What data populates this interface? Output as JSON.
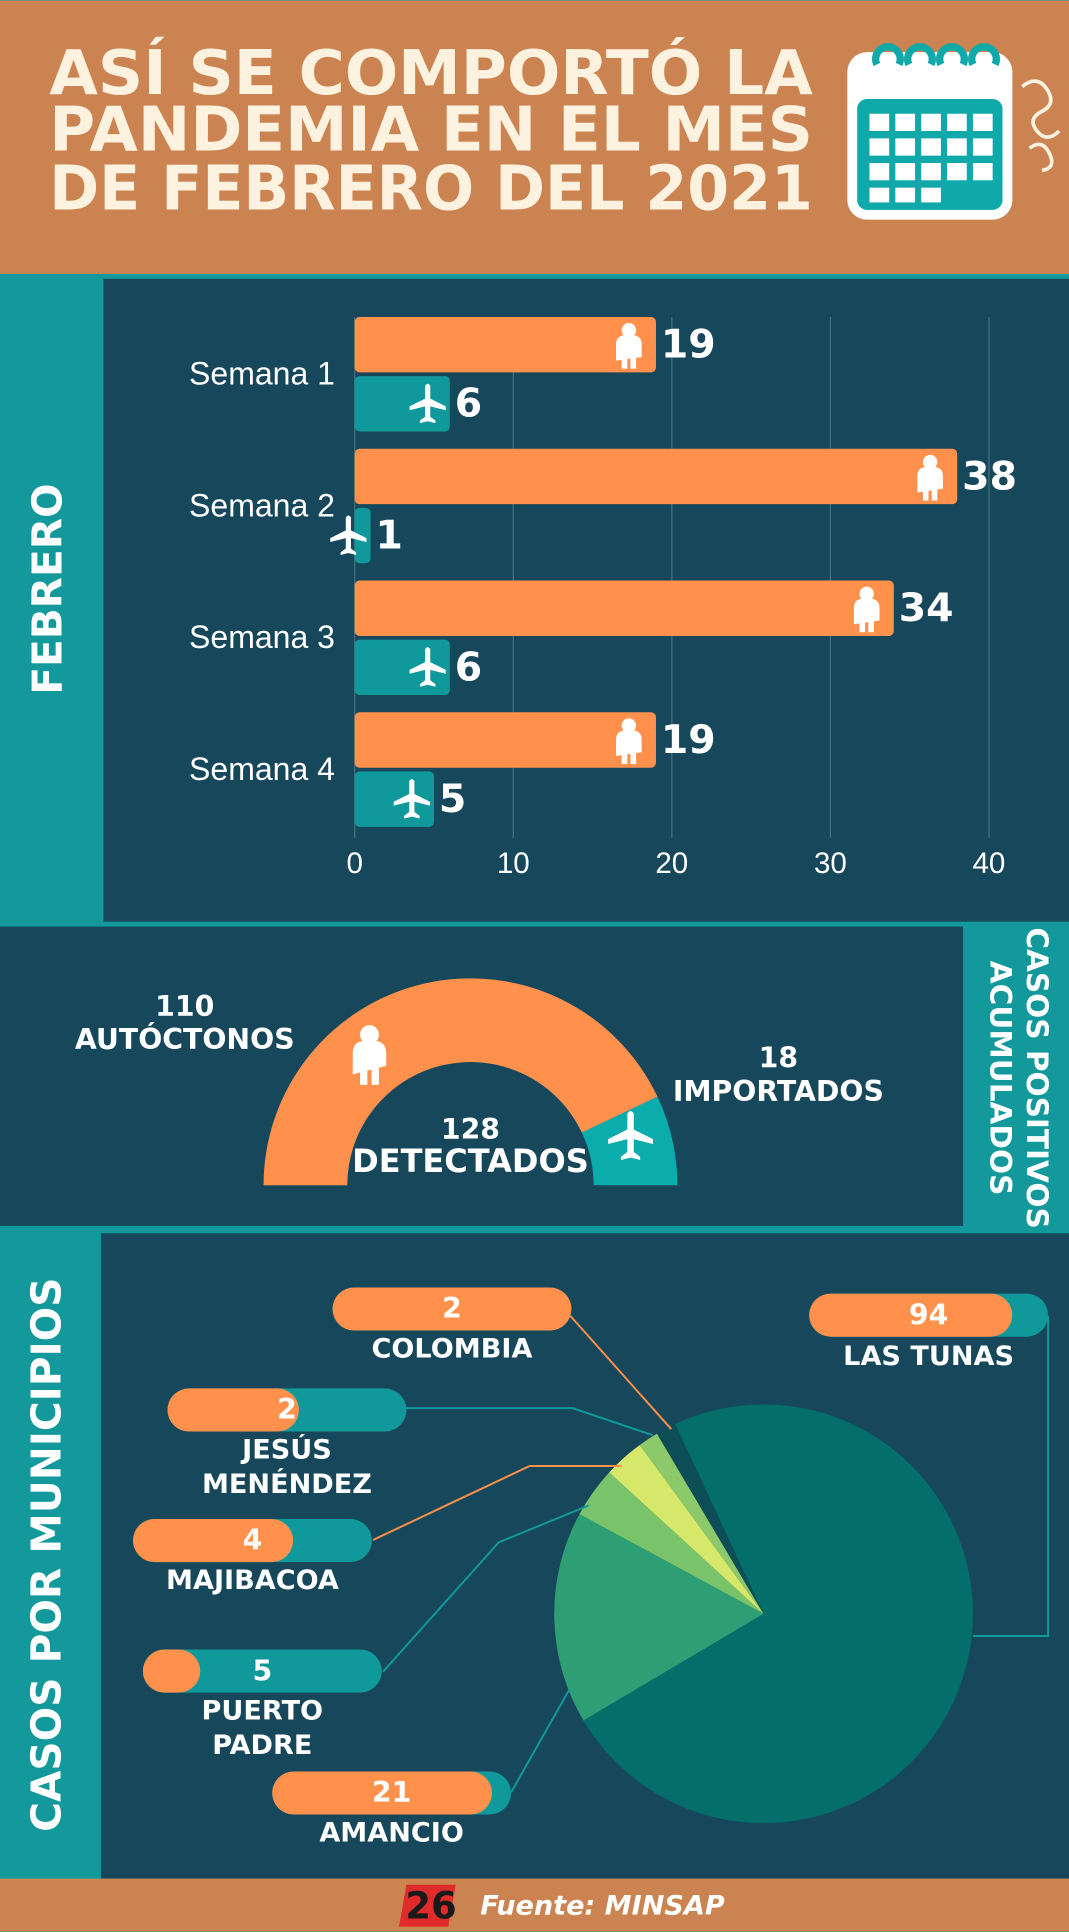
{
  "title": [
    "ASÍ SE COMPORTÓ LA",
    "PANDEMIA EN EL MES",
    "DE FEBRERO DEL 2021"
  ],
  "chart_data": [
    {
      "type": "bar",
      "section": "FEBRERO",
      "categories": [
        "Semana 1",
        "Semana 2",
        "Semana 3",
        "Semana 4"
      ],
      "series": [
        {
          "color": "#ff914d",
          "values": [
            19,
            38,
            34,
            19
          ]
        },
        {
          "color": "#10999a",
          "values": [
            6,
            1,
            6,
            5
          ]
        }
      ],
      "xlim": [
        0,
        40
      ],
      "xticks": [
        0,
        10,
        20,
        30,
        40
      ],
      "grid": true
    },
    {
      "type": "half-donut",
      "section": [
        "CASOS POSITIVOS",
        "ACUMULADOS"
      ],
      "categories": [
        "AUTÓCTONOS",
        "IMPORTADOS"
      ],
      "values": [
        110,
        18
      ],
      "colors": [
        "#ff914d",
        "#0aacac"
      ],
      "total": 128,
      "total_label": "DETECTADOS"
    },
    {
      "type": "pie",
      "section": "CASOS POR MUNICIPIOS",
      "categories": [
        "COLOMBIA",
        "JESÚS MENÉNDEZ",
        "MAJIBACOA",
        "PUERTO PADRE",
        "AMANCIO",
        "LAS TUNAS"
      ],
      "values": [
        2,
        2,
        4,
        5,
        21,
        94
      ],
      "colors": [
        "#0d4d55",
        "#8cc96a",
        "#d6e86a",
        "#79c46b",
        "#2e9e75",
        "#046e6b"
      ]
    }
  ],
  "logo": "26",
  "source": "Fuente: MINSAP"
}
